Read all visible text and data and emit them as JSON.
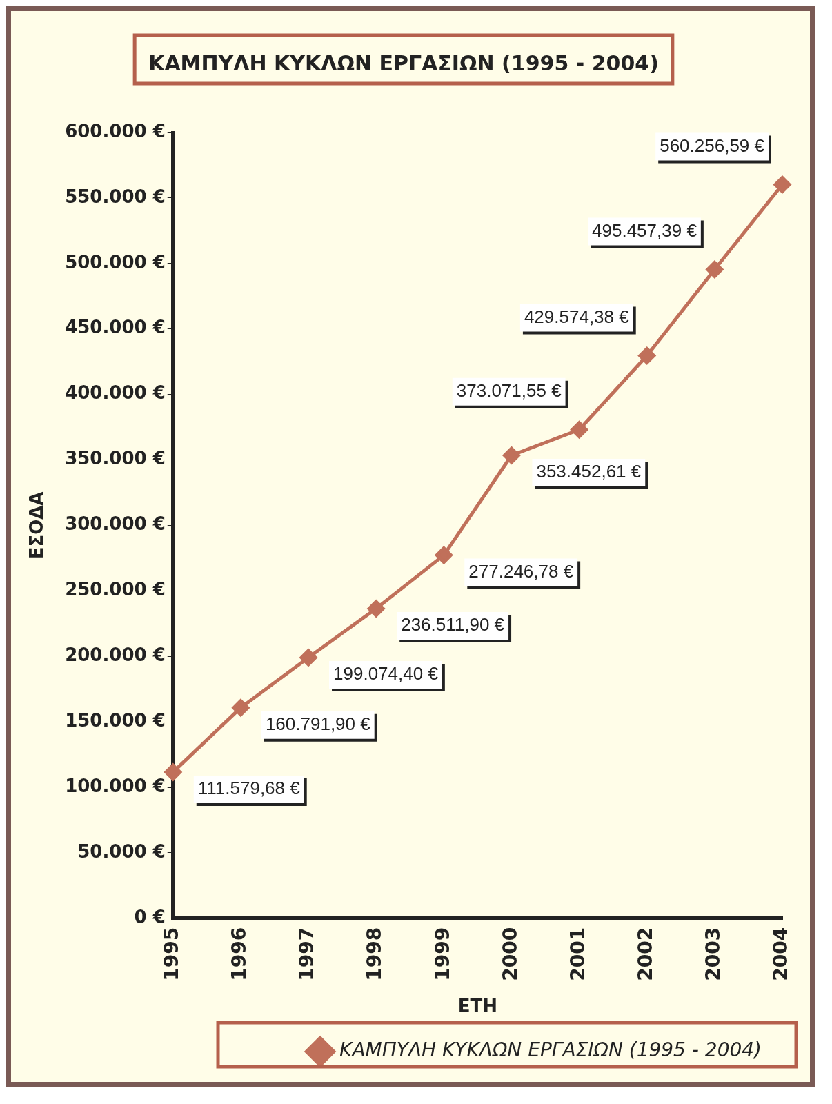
{
  "chart_data": {
    "type": "line",
    "title": "ΚΑΜΠΥΛΗ ΚΥΚΛΩΝ ΕΡΓΑΣΙΩΝ (1995 - 2004)",
    "xlabel": "ΕΤΗ",
    "ylabel": "ΕΣΟΔΑ",
    "categories": [
      "1995",
      "1996",
      "1997",
      "1998",
      "1999",
      "2000",
      "2001",
      "2002",
      "2003",
      "2004"
    ],
    "series": [
      {
        "name": "ΚΑΜΠΥΛΗ ΚΥΚΛΩΝ ΕΡΓΑΣΙΩΝ (1995 - 2004)",
        "color": "#c0705a",
        "values": [
          111579.68,
          160791.9,
          199074.4,
          236511.9,
          277246.78,
          353452.61,
          373071.55,
          429574.38,
          495457.39,
          560256.59
        ],
        "value_labels": [
          "111.579,68 €",
          "160.791,90 €",
          "199.074,40 €",
          "236.511,90 €",
          "277.246,78 €",
          "353.452,61 €",
          "373.071,55 €",
          "429.574,38 €",
          "495.457,39 €",
          "560.256,59 €"
        ]
      }
    ],
    "ylim": [
      0,
      600000
    ],
    "yticks": [
      {
        "value": 0,
        "label": "0 €"
      },
      {
        "value": 50000,
        "label": "50.000 €"
      },
      {
        "value": 100000,
        "label": "100.000 €"
      },
      {
        "value": 150000,
        "label": "150.000 €"
      },
      {
        "value": 200000,
        "label": "200.000 €"
      },
      {
        "value": 250000,
        "label": "250.000 €"
      },
      {
        "value": 300000,
        "label": "300.000 €"
      },
      {
        "value": 350000,
        "label": "350.000 €"
      },
      {
        "value": 400000,
        "label": "400.000 €"
      },
      {
        "value": 450000,
        "label": "450.000 €"
      },
      {
        "value": 500000,
        "label": "500.000 €"
      },
      {
        "value": 550000,
        "label": "550.000 €"
      },
      {
        "value": 600000,
        "label": "600.000 €"
      }
    ],
    "grid": false,
    "legend": "bottom",
    "marker": "diamond",
    "line_style": "solid"
  }
}
